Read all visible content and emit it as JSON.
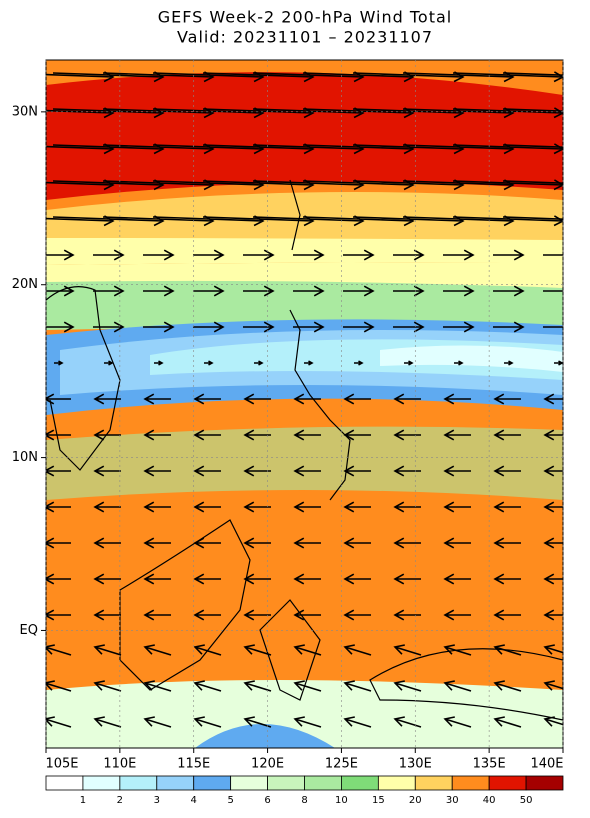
{
  "header": {
    "title": "GEFS Week-2 200-hPa Wind Total",
    "subtitle": "Valid: 20231101 – 20231107"
  },
  "map": {
    "xlim": [
      105,
      140
    ],
    "ylim": [
      -6.8,
      33
    ],
    "xticks": [
      {
        "value": 105,
        "label": "105E"
      },
      {
        "value": 110,
        "label": "110E"
      },
      {
        "value": 115,
        "label": "115E"
      },
      {
        "value": 120,
        "label": "120E"
      },
      {
        "value": 125,
        "label": "125E"
      },
      {
        "value": 130,
        "label": "130E"
      },
      {
        "value": 135,
        "label": "135E"
      },
      {
        "value": 140,
        "label": "140E"
      }
    ],
    "yticks": [
      {
        "value": 30,
        "label": "30N"
      },
      {
        "value": 20,
        "label": "20N"
      },
      {
        "value": 10,
        "label": "10N"
      },
      {
        "value": 0,
        "label": "EQ"
      }
    ],
    "grid": true
  },
  "colorbar": {
    "levels": [
      1,
      2,
      3,
      4,
      5,
      6,
      8,
      10,
      15,
      20,
      30,
      40,
      50
    ],
    "colors": [
      "#ffffff",
      "#e1ffff",
      "#b4f0fa",
      "#96d2fa",
      "#5faaf0",
      "#e6ffdc",
      "#c8f5bc",
      "#aaeaa0",
      "#7fdc78",
      "#ffffaa",
      "#ffd25f",
      "#ff8c1e",
      "#e11400",
      "#a50000"
    ]
  }
}
